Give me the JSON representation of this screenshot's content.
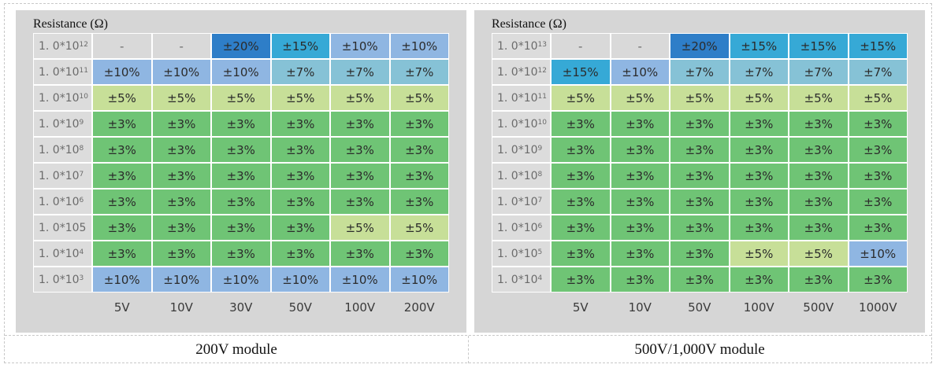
{
  "colors": {
    "-": "#d9d9d9",
    "±20%": "#2e7ec8",
    "±15%": "#36a9d6",
    "±10%": "#8fb6e2",
    "±7%": "#86c2d6",
    "±5%": "#c7df98",
    "±3%": "#6fc475"
  },
  "chart_data": [
    {
      "type": "table",
      "title": "Resistance (Ω)",
      "caption": "200V module",
      "row_labels": [
        {
          "base": "1. 0*10",
          "exp": "12"
        },
        {
          "base": "1. 0*10",
          "exp": "11"
        },
        {
          "base": "1. 0*10",
          "exp": "10"
        },
        {
          "base": "1. 0*10",
          "exp": "9"
        },
        {
          "base": "1. 0*10",
          "exp": "8"
        },
        {
          "base": "1. 0*10",
          "exp": "7"
        },
        {
          "base": "1. 0*10",
          "exp": "6"
        },
        {
          "base": "1. 0*105",
          "exp": ""
        },
        {
          "base": "1. 0*10",
          "exp": "4"
        },
        {
          "base": "1. 0*10",
          "exp": "3"
        }
      ],
      "columns": [
        "5V",
        "10V",
        "30V",
        "50V",
        "100V",
        "200V"
      ],
      "values": [
        [
          "-",
          "-",
          "±20%",
          "±15%",
          "±10%",
          "±10%"
        ],
        [
          "±10%",
          "±10%",
          "±10%",
          "±7%",
          "±7%",
          "±7%"
        ],
        [
          "±5%",
          "±5%",
          "±5%",
          "±5%",
          "±5%",
          "±5%"
        ],
        [
          "±3%",
          "±3%",
          "±3%",
          "±3%",
          "±3%",
          "±3%"
        ],
        [
          "±3%",
          "±3%",
          "±3%",
          "±3%",
          "±3%",
          "±3%"
        ],
        [
          "±3%",
          "±3%",
          "±3%",
          "±3%",
          "±3%",
          "±3%"
        ],
        [
          "±3%",
          "±3%",
          "±3%",
          "±3%",
          "±3%",
          "±3%"
        ],
        [
          "±3%",
          "±3%",
          "±3%",
          "±3%",
          "±5%",
          "±5%"
        ],
        [
          "±3%",
          "±3%",
          "±3%",
          "±3%",
          "±3%",
          "±3%"
        ],
        [
          "±10%",
          "±10%",
          "±10%",
          "±10%",
          "±10%",
          "±10%"
        ]
      ]
    },
    {
      "type": "table",
      "title": "Resistance (Ω)",
      "caption": "500V/1,000V module",
      "row_labels": [
        {
          "base": "1. 0*10",
          "exp": "13"
        },
        {
          "base": "1. 0*10",
          "exp": "12"
        },
        {
          "base": "1. 0*10",
          "exp": "11"
        },
        {
          "base": "1. 0*10",
          "exp": "10"
        },
        {
          "base": "1. 0*10",
          "exp": "9"
        },
        {
          "base": "1. 0*10",
          "exp": "8"
        },
        {
          "base": "1. 0*10",
          "exp": "7"
        },
        {
          "base": "1. 0*10",
          "exp": "6"
        },
        {
          "base": "1. 0*10",
          "exp": "5"
        },
        {
          "base": "1. 0*10",
          "exp": "4"
        }
      ],
      "columns": [
        "5V",
        "10V",
        "50V",
        "100V",
        "500V",
        "1000V"
      ],
      "values": [
        [
          "-",
          "-",
          "±20%",
          "±15%",
          "±15%",
          "±15%"
        ],
        [
          "±15%",
          "±10%",
          "±7%",
          "±7%",
          "±7%",
          "±7%"
        ],
        [
          "±5%",
          "±5%",
          "±5%",
          "±5%",
          "±5%",
          "±5%"
        ],
        [
          "±3%",
          "±3%",
          "±3%",
          "±3%",
          "±3%",
          "±3%"
        ],
        [
          "±3%",
          "±3%",
          "±3%",
          "±3%",
          "±3%",
          "±3%"
        ],
        [
          "±3%",
          "±3%",
          "±3%",
          "±3%",
          "±3%",
          "±3%"
        ],
        [
          "±3%",
          "±3%",
          "±3%",
          "±3%",
          "±3%",
          "±3%"
        ],
        [
          "±3%",
          "±3%",
          "±3%",
          "±3%",
          "±3%",
          "±3%"
        ],
        [
          "±3%",
          "±3%",
          "±3%",
          "±5%",
          "±5%",
          "±10%"
        ],
        [
          "±3%",
          "±3%",
          "±3%",
          "±3%",
          "±3%",
          "±3%"
        ]
      ]
    }
  ]
}
